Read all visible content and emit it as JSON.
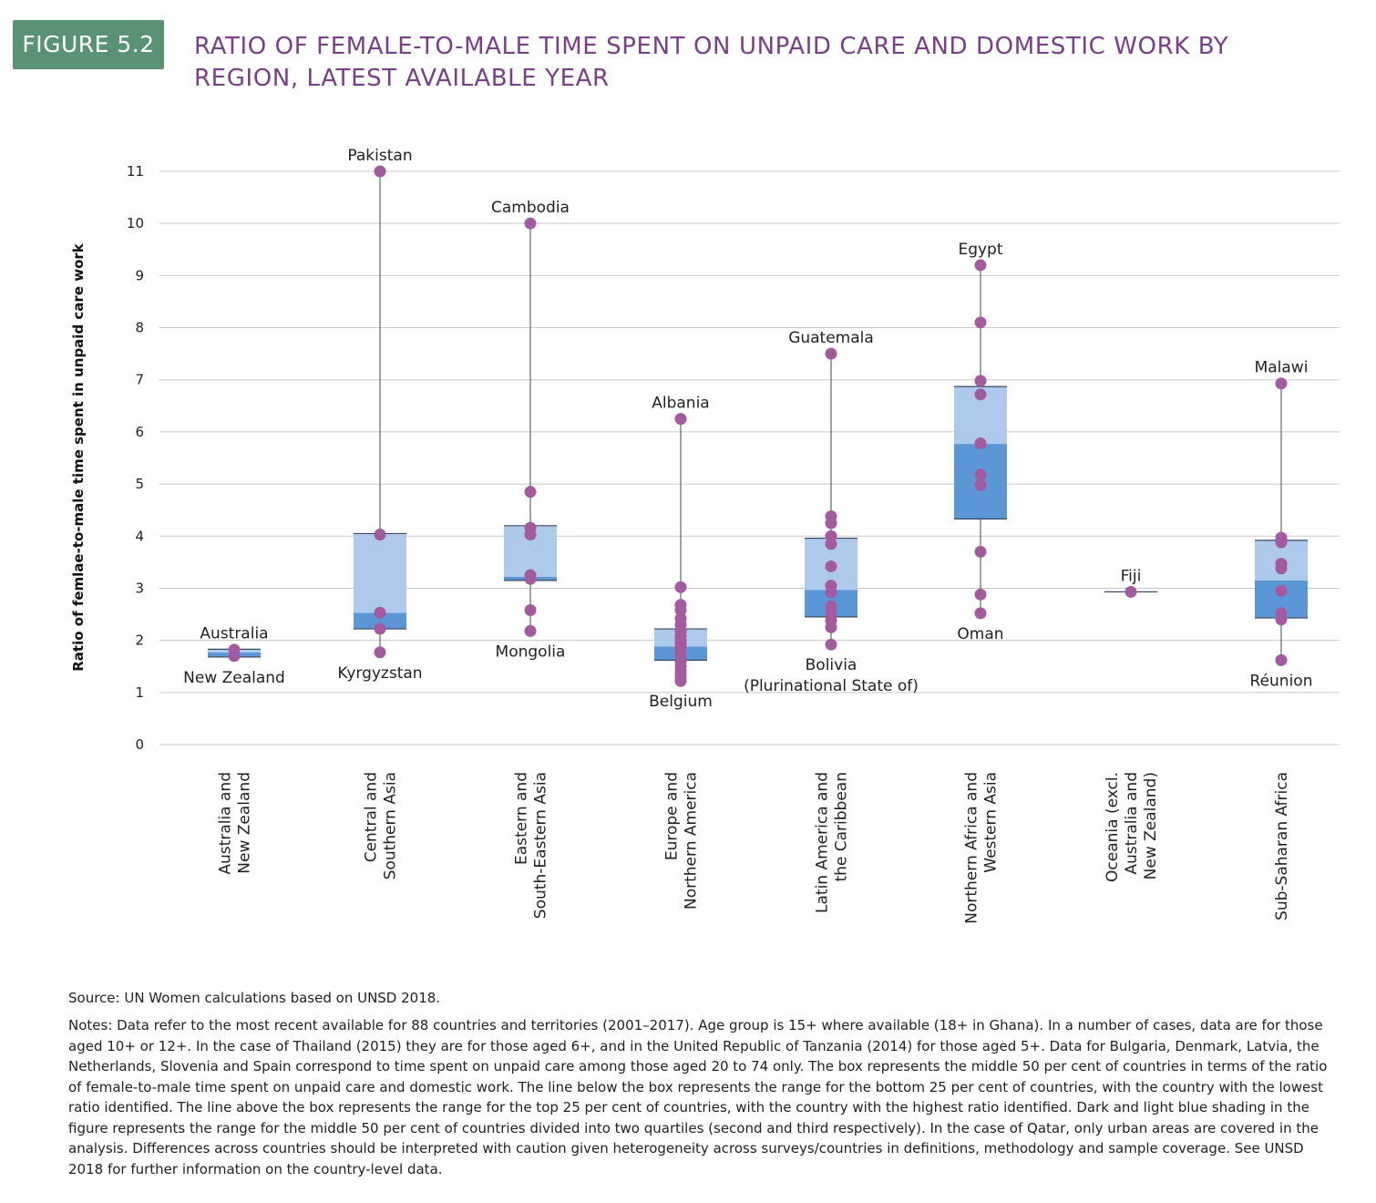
{
  "figure": {
    "label": "FIGURE 5.2",
    "title": "RATIO OF FEMALE-TO-MALE TIME SPENT ON UNPAID CARE AND DOMESTIC WORK BY REGION, LATEST AVAILABLE YEAR",
    "source": "Source: UN Women calculations based on UNSD 2018.",
    "notes": "Notes: Data refer to the most recent available for 88 countries and territories (2001–2017). Age group is 15+ where available (18+ in Ghana). In a number of cases, data are for those aged 10+ or 12+. In the case of Thailand (2015) they are for those aged 6+, and in the United Republic of Tanzania (2014) for those aged 5+. Data for Bulgaria, Denmark, Latvia, the Netherlands, Slovenia and Spain correspond to time spent on unpaid care among those aged 20 to 74 only. The box represents the middle 50 per cent of countries in terms of the ratio of female-to-male time spent on unpaid care and domestic work. The line below the box represents the range for the bottom 25 per cent of countries, with the country with the lowest ratio identified. The line above the box represents the range for the top 25 per cent of countries, with the country with the highest ratio identified. Dark and light blue shading in the figure represents the range for the middle 50 per cent of countries divided into two quartiles (second and third respectively). In the case of Qatar, only urban areas are covered in the analysis. Differences across countries should be interpreted with caution given heterogeneity across surveys/countries in definitions, methodology and sample coverage. See UNSD 2018 for further information on the country-level data."
  },
  "chart_data": {
    "type": "box",
    "ylabel": "Ratio of femlae-to-male time spent in unpaid care work",
    "ylim": [
      0,
      11
    ],
    "yticks": [
      "0",
      "1",
      "2",
      "3",
      "4",
      "5",
      "6",
      "7",
      "8",
      "9",
      "10",
      "11"
    ],
    "grid": true,
    "colors": {
      "q2_dark_blue": "#5b97d7",
      "q3_light_blue": "#adc9ec",
      "points": "#a45a9f",
      "whisker": "#3a4a5e",
      "grid": "#c8c8c8"
    },
    "categories": [
      {
        "label_lines": [
          "Australia and",
          "New Zealand"
        ],
        "q1": 1.68,
        "median": 1.77,
        "q3": 1.83,
        "whisker_low": 1.68,
        "whisker_high": 1.83,
        "points": [
          1.82,
          1.7
        ],
        "max_label": "Australia",
        "min_label": "New Zealand"
      },
      {
        "label_lines": [
          "Central and",
          "Southern Asia"
        ],
        "q1": 2.22,
        "median": 2.53,
        "q3": 4.05,
        "whisker_low": 1.77,
        "whisker_high": 11.0,
        "points": [
          11.0,
          4.03,
          2.53,
          2.22,
          1.77
        ],
        "max_label": "Pakistan",
        "min_label": "Kyrgyzstan"
      },
      {
        "label_lines": [
          "Eastern and",
          "South-Eastern Asia"
        ],
        "q1": 3.15,
        "median": 3.22,
        "q3": 4.2,
        "whisker_low": 2.18,
        "whisker_high": 10.0,
        "points": [
          10.0,
          4.85,
          4.16,
          4.03,
          3.25,
          3.18,
          2.58,
          2.18
        ],
        "max_label": "Cambodia",
        "min_label": "Mongolia"
      },
      {
        "label_lines": [
          "Europe and",
          "Northern America"
        ],
        "q1": 1.62,
        "median": 1.88,
        "q3": 2.22,
        "whisker_low": 1.22,
        "whisker_high": 6.25,
        "points": [
          6.25,
          3.02,
          2.68,
          2.58,
          2.42,
          2.3,
          2.18,
          2.08,
          2.0,
          1.93,
          1.85,
          1.76,
          1.68,
          1.6,
          1.5,
          1.42,
          1.35,
          1.28,
          1.22
        ],
        "max_label": "Albania",
        "min_label": "Belgium"
      },
      {
        "label_lines": [
          "Latin America and",
          "the Caribbean"
        ],
        "q1": 2.45,
        "median": 2.97,
        "q3": 3.96,
        "whisker_low": 1.92,
        "whisker_high": 7.5,
        "points": [
          7.5,
          4.38,
          4.25,
          4.0,
          3.85,
          3.42,
          3.05,
          2.92,
          2.65,
          2.52,
          2.38,
          2.25,
          1.92
        ],
        "max_label": "Guatemala",
        "min_label_lines": [
          "Bolivia",
          "(Plurinational State of)"
        ]
      },
      {
        "label_lines": [
          "Northern Africa and",
          "Western Asia"
        ],
        "q1": 4.33,
        "median": 5.77,
        "q3": 6.87,
        "whisker_low": 2.52,
        "whisker_high": 9.2,
        "points": [
          9.2,
          8.1,
          6.98,
          6.72,
          5.78,
          5.18,
          4.98,
          3.7,
          2.88,
          2.52
        ],
        "max_label": "Egypt",
        "min_label": "Oman"
      },
      {
        "label_lines": [
          "Oceania (excl.",
          "Australia and",
          "New Zealand)"
        ],
        "q1": 2.93,
        "median": 2.93,
        "q3": 2.93,
        "whisker_low": 2.93,
        "whisker_high": 2.93,
        "points": [
          2.93
        ],
        "max_label": "Fiji"
      },
      {
        "label_lines": [
          "Sub-Saharan Africa"
        ],
        "q1": 2.43,
        "median": 3.15,
        "q3": 3.92,
        "whisker_low": 1.62,
        "whisker_high": 6.93,
        "points": [
          6.93,
          3.97,
          3.88,
          3.47,
          3.38,
          2.95,
          2.52,
          2.4,
          1.62
        ],
        "max_label": "Malawi",
        "min_label": "Réunion"
      }
    ]
  }
}
